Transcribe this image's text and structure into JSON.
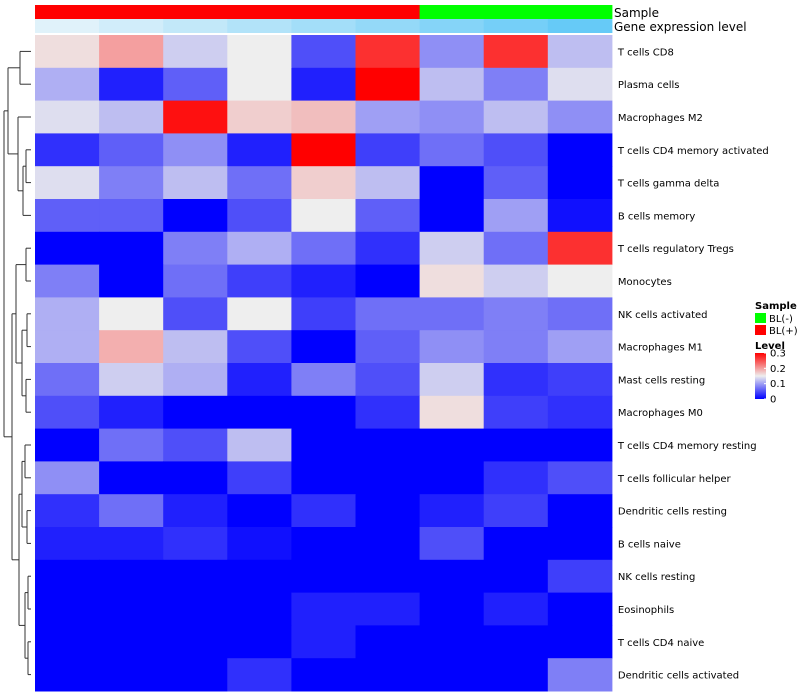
{
  "chart_data": {
    "type": "heatmap",
    "tracks": [
      {
        "label": "Sample",
        "values": [
          "BL(+)",
          "BL(+)",
          "BL(+)",
          "BL(+)",
          "BL(+)",
          "BL(+)",
          "BL(-)",
          "BL(-)",
          "BL(-)"
        ]
      },
      {
        "label": "Gene expression level",
        "values": [
          0.05,
          0.15,
          0.25,
          0.35,
          0.45,
          0.55,
          0.65,
          0.75,
          0.85
        ]
      }
    ],
    "rows": [
      "T cells CD8",
      "Plasma cells",
      "Macrophages M2",
      "T cells CD4 memory activated",
      "T cells gamma delta",
      "B cells memory",
      "T cells regulatory  Tregs",
      "Monocytes",
      "NK cells activated",
      "Macrophages M1",
      "Mast cells resting",
      "Macrophages M0",
      "T cells CD4 memory resting",
      "T cells follicular helper",
      "Dendritic cells resting",
      "B cells naive",
      "NK cells resting",
      "Eosinophils",
      "T cells CD4 naive",
      "Dendritic cells activated"
    ],
    "values": [
      [
        0.16,
        0.2,
        0.13,
        0.15,
        0.05,
        0.27,
        0.09,
        0.27,
        0.12
      ],
      [
        0.11,
        0.02,
        0.06,
        0.15,
        0.02,
        0.3,
        0.12,
        0.08,
        0.14
      ],
      [
        0.14,
        0.12,
        0.29,
        0.17,
        0.18,
        0.1,
        0.09,
        0.12,
        0.09
      ],
      [
        0.03,
        0.06,
        0.09,
        0.02,
        0.3,
        0.04,
        0.07,
        0.05,
        0.0
      ],
      [
        0.14,
        0.08,
        0.12,
        0.07,
        0.17,
        0.12,
        0.0,
        0.06,
        0.0
      ],
      [
        0.06,
        0.06,
        0.0,
        0.05,
        0.15,
        0.06,
        0.0,
        0.1,
        0.01
      ],
      [
        0.0,
        0.0,
        0.08,
        0.11,
        0.07,
        0.03,
        0.13,
        0.07,
        0.27
      ],
      [
        0.08,
        0.0,
        0.07,
        0.04,
        0.02,
        0.0,
        0.16,
        0.13,
        0.15
      ],
      [
        0.11,
        0.15,
        0.05,
        0.15,
        0.04,
        0.07,
        0.07,
        0.08,
        0.07
      ],
      [
        0.11,
        0.19,
        0.12,
        0.05,
        0.0,
        0.06,
        0.09,
        0.08,
        0.1
      ],
      [
        0.07,
        0.13,
        0.11,
        0.02,
        0.08,
        0.05,
        0.13,
        0.03,
        0.04
      ],
      [
        0.05,
        0.02,
        0.0,
        0.0,
        0.0,
        0.03,
        0.16,
        0.04,
        0.03
      ],
      [
        0.0,
        0.07,
        0.05,
        0.12,
        0.0,
        0.0,
        0.0,
        0.0,
        0.0
      ],
      [
        0.09,
        0.0,
        0.0,
        0.04,
        0.0,
        0.0,
        0.0,
        0.03,
        0.05
      ],
      [
        0.03,
        0.07,
        0.02,
        0.0,
        0.03,
        0.0,
        0.02,
        0.04,
        0.0
      ],
      [
        0.02,
        0.02,
        0.03,
        0.01,
        0.0,
        0.0,
        0.05,
        0.0,
        0.0
      ],
      [
        0.0,
        0.0,
        0.0,
        0.0,
        0.0,
        0.0,
        0.0,
        0.0,
        0.04
      ],
      [
        0.0,
        0.0,
        0.0,
        0.0,
        0.02,
        0.02,
        0.0,
        0.02,
        0.0
      ],
      [
        0.0,
        0.0,
        0.0,
        0.0,
        0.02,
        0.0,
        0.0,
        0.0,
        0.0
      ],
      [
        0.0,
        0.0,
        0.0,
        0.03,
        0.0,
        0.0,
        0.0,
        0.0,
        0.08
      ]
    ],
    "zlim": [
      0,
      0.3
    ],
    "colors": {
      "low": "#0000FF",
      "mid": "#EEEEEE",
      "high": "#FF0000",
      "mid_value": 0.15
    },
    "dendrogram": "left",
    "legend": {
      "placement": "right",
      "sample": {
        "title": "Sample",
        "items": [
          {
            "label": "BL(-)",
            "color": "#00FF00"
          },
          {
            "label": "BL(+)",
            "color": "#FF0000"
          }
        ]
      },
      "level": {
        "title": "Level",
        "ticks": [
          "0.3",
          "0.2",
          "0.1",
          "0"
        ],
        "tick_values": [
          0.3,
          0.2,
          0.1,
          0
        ]
      }
    }
  }
}
